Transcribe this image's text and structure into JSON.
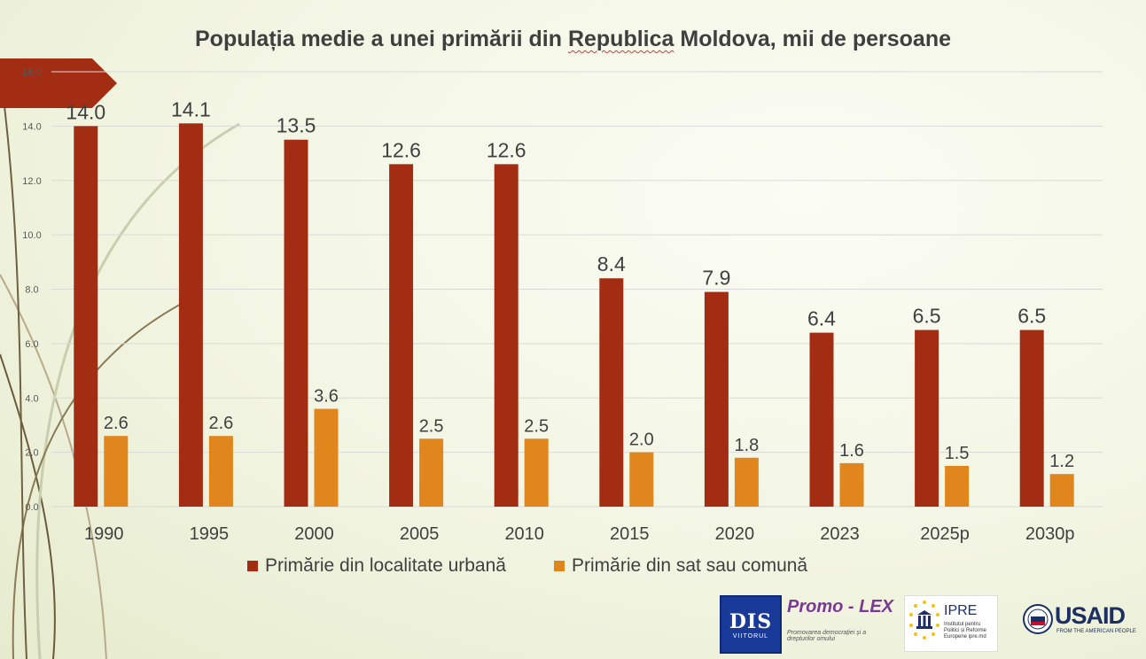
{
  "title_parts": [
    "Populația medie a unei primării din ",
    "Republica",
    " Moldova, mii de persoane"
  ],
  "colors": {
    "urban": "#a32d12",
    "rural": "#e0861c",
    "grid": "#d9d9d9",
    "text": "#404040",
    "accent_tab": "#a32d12"
  },
  "chart_data": {
    "type": "bar",
    "categories": [
      "1990",
      "1995",
      "2000",
      "2005",
      "2010",
      "2015",
      "2020",
      "2023",
      "2025p",
      "2030p"
    ],
    "series": [
      {
        "name": "Primărie din localitate urbană",
        "values": [
          14.0,
          14.1,
          13.5,
          12.6,
          12.6,
          8.4,
          7.9,
          6.4,
          6.5,
          6.5
        ]
      },
      {
        "name": "Primărie din sat sau comună",
        "values": [
          2.6,
          2.6,
          3.6,
          2.5,
          2.5,
          2.0,
          1.8,
          1.6,
          1.5,
          1.2
        ]
      }
    ],
    "ylim": [
      0,
      16
    ],
    "yticks": [
      "0.0",
      "2.0",
      "4.0",
      "6.0",
      "8.0",
      "10.0",
      "12.0",
      "14.0",
      "16.0"
    ],
    "value_format": "one-decimal",
    "grid": true,
    "legend_position": "bottom"
  },
  "logos": {
    "dis": {
      "text": "DIS",
      "sub": "VIITORUL"
    },
    "promo": {
      "name": "Promo - LEX",
      "tagline": "Promovarea democrației și a drepturilor omului"
    },
    "ipre": {
      "name": "IPRE",
      "sub": "Institutul pentru Politici și Reforme Europene ipre.md"
    },
    "usaid": {
      "name": "USAID",
      "tagline": "FROM THE AMERICAN PEOPLE"
    }
  }
}
